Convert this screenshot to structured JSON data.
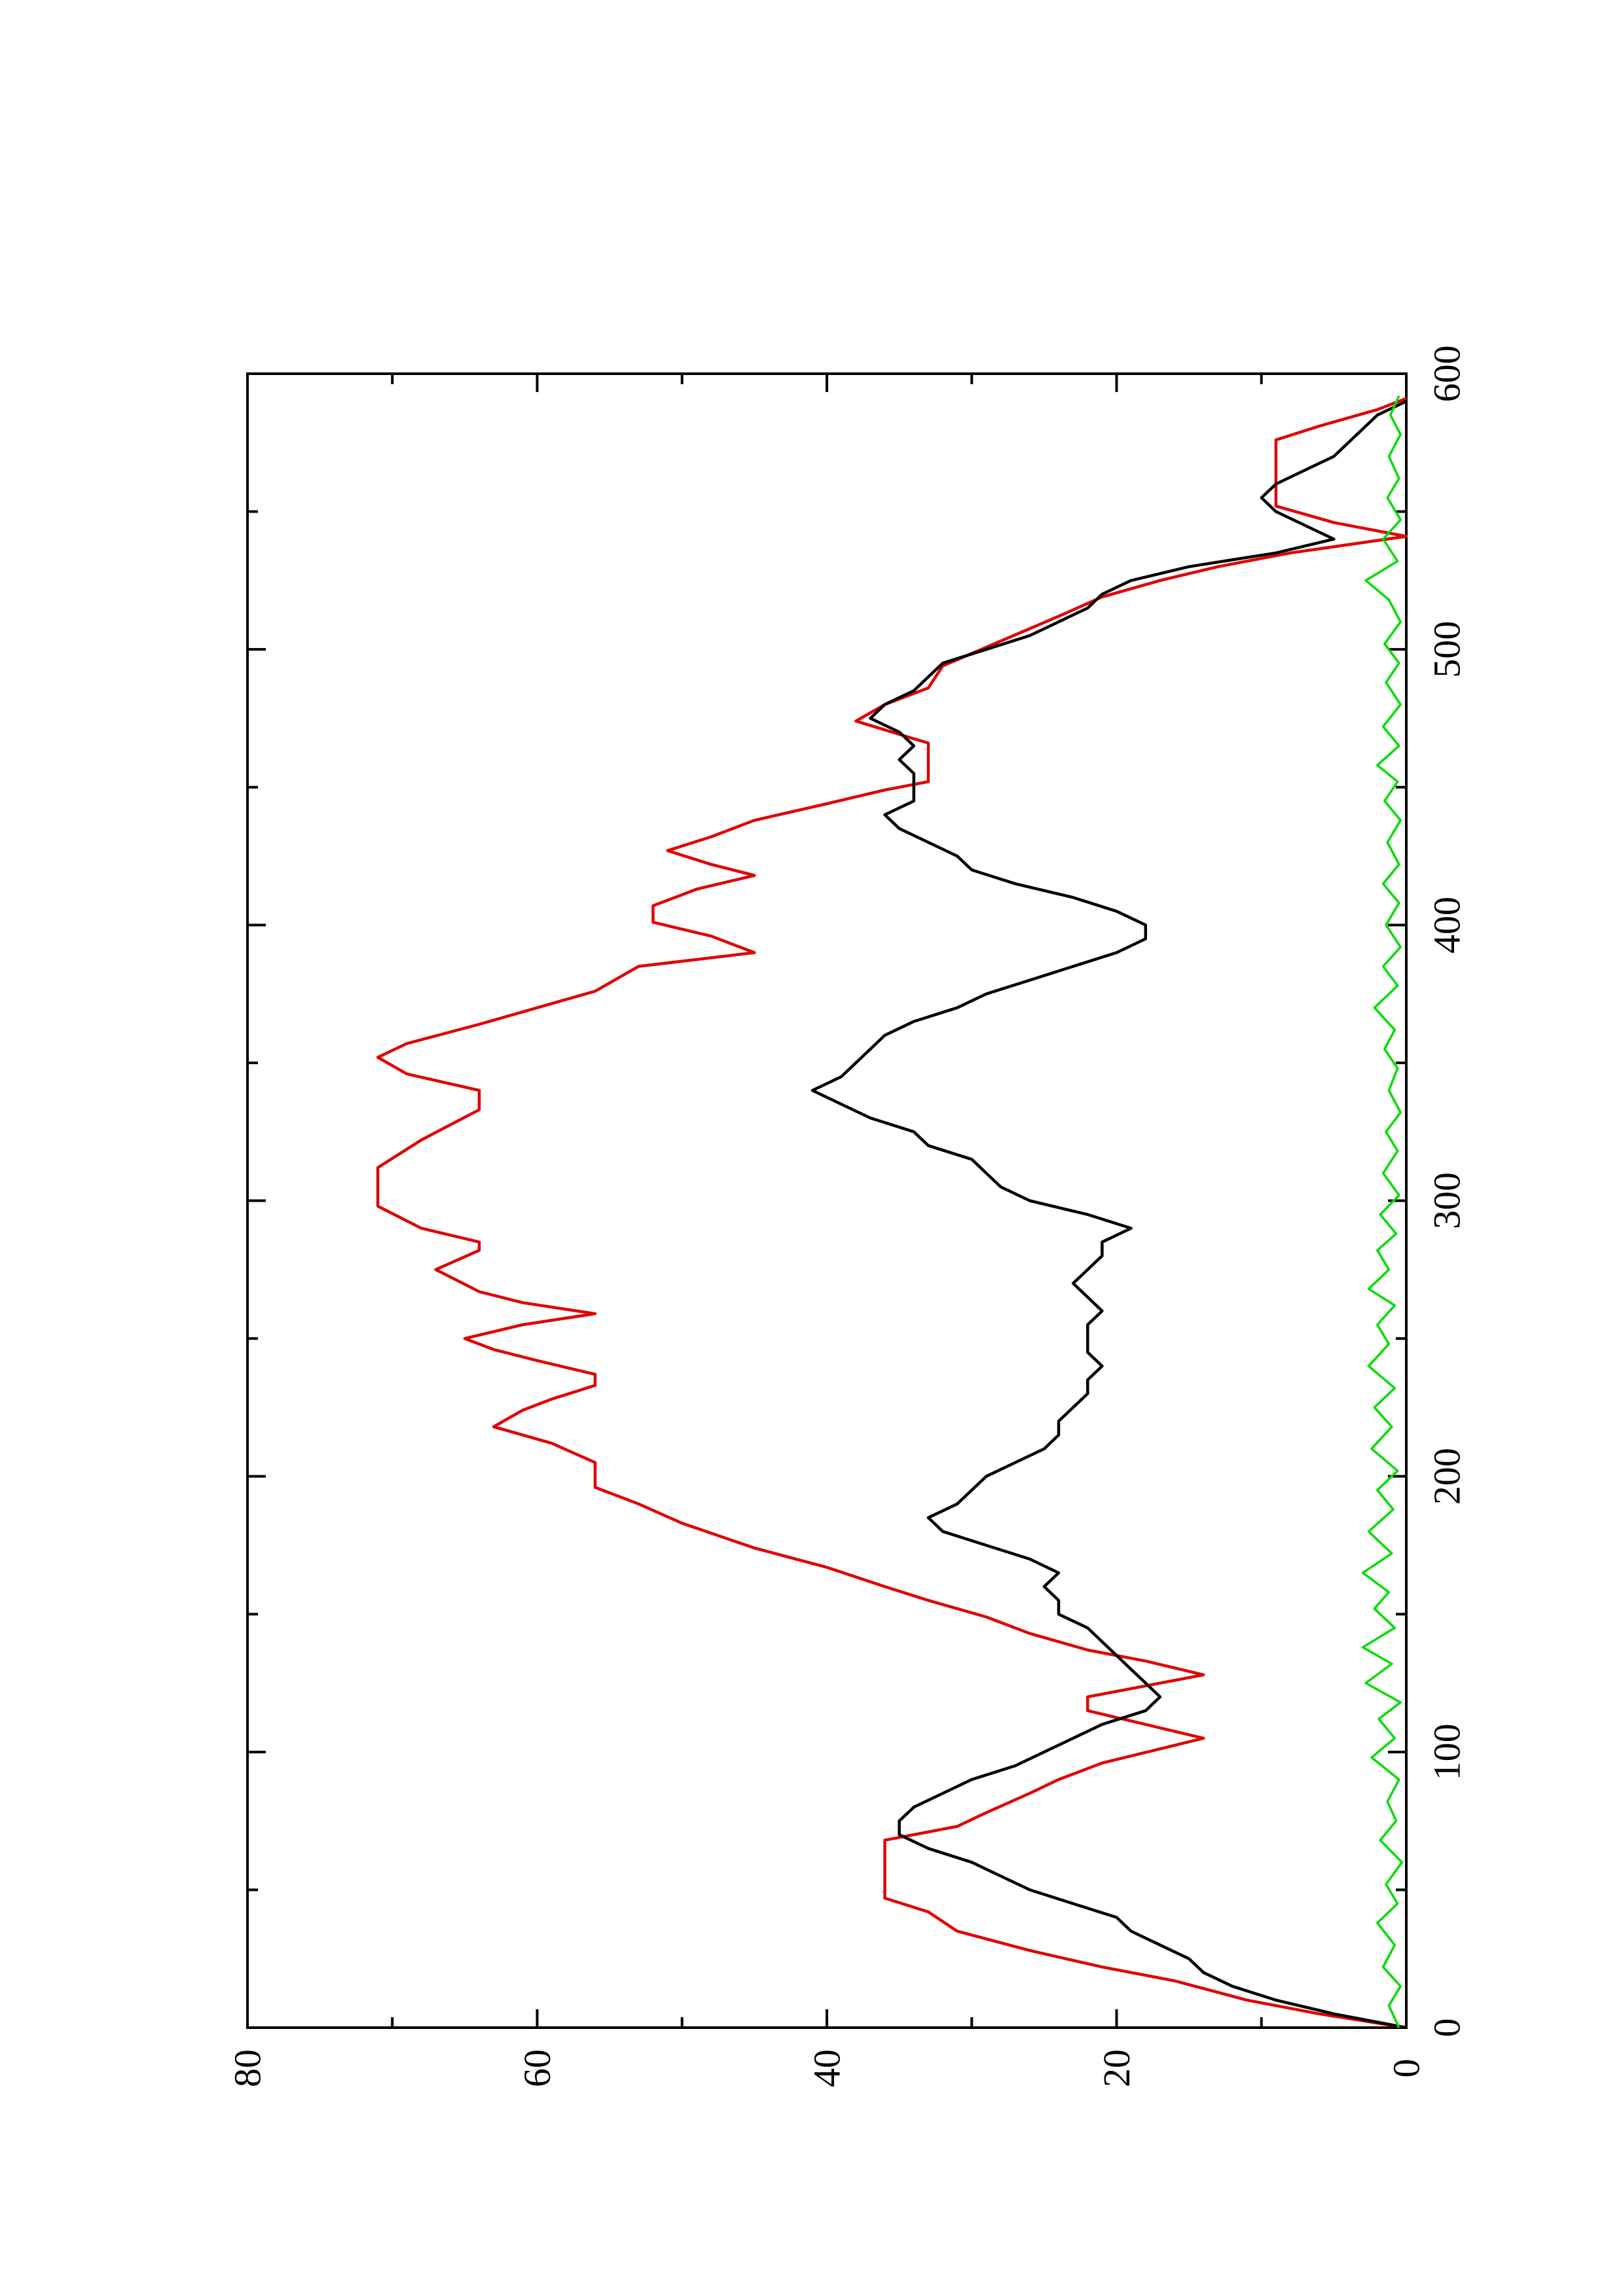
{
  "chart_data": {
    "type": "line",
    "title": "",
    "xlabel": "",
    "ylabel": "",
    "orientation": "rotated-90-ccw",
    "xlim": [
      0,
      600
    ],
    "ylim": [
      0,
      80
    ],
    "x_ticks": [
      0,
      100,
      200,
      300,
      400,
      500,
      600
    ],
    "x_tick_labels": [
      "0",
      "100",
      "200",
      "300",
      "400",
      "500",
      "600"
    ],
    "y_ticks": [
      0,
      20,
      40,
      60,
      80
    ],
    "y_tick_labels": [
      "0",
      "20",
      "40",
      "60",
      "80"
    ],
    "grid": false,
    "legend": "none",
    "series": [
      {
        "color": "#e00000",
        "style": "step",
        "points": [
          [
            0,
            0
          ],
          [
            5,
            6
          ],
          [
            10,
            11
          ],
          [
            17,
            16
          ],
          [
            22,
            21
          ],
          [
            28,
            26
          ],
          [
            35,
            31
          ],
          [
            42,
            33
          ],
          [
            47,
            36
          ],
          [
            68,
            36
          ],
          [
            73,
            31
          ],
          [
            78,
            29
          ],
          [
            85,
            26
          ],
          [
            90,
            24
          ],
          [
            96,
            21
          ],
          [
            105,
            14
          ],
          [
            110,
            18
          ],
          [
            115,
            22
          ],
          [
            120,
            22
          ],
          [
            124,
            18
          ],
          [
            128,
            14
          ],
          [
            133,
            18
          ],
          [
            137,
            22
          ],
          [
            143,
            26
          ],
          [
            149,
            29
          ],
          [
            155,
            33
          ],
          [
            160,
            36
          ],
          [
            167,
            40
          ],
          [
            174,
            45
          ],
          [
            183,
            50
          ],
          [
            190,
            53
          ],
          [
            196,
            56
          ],
          [
            205,
            56
          ],
          [
            212,
            59
          ],
          [
            218,
            63
          ],
          [
            224,
            61
          ],
          [
            228,
            59
          ],
          [
            233,
            56
          ],
          [
            237,
            56
          ],
          [
            242,
            60
          ],
          [
            246,
            63
          ],
          [
            250,
            65
          ],
          [
            255,
            61
          ],
          [
            259,
            56
          ],
          [
            263,
            61
          ],
          [
            267,
            64
          ],
          [
            275,
            67
          ],
          [
            282,
            64
          ],
          [
            285,
            64
          ],
          [
            290,
            68
          ],
          [
            298,
            71
          ],
          [
            312,
            71
          ],
          [
            322,
            68
          ],
          [
            333,
            64
          ],
          [
            340,
            64
          ],
          [
            346,
            69
          ],
          [
            352,
            71
          ],
          [
            357,
            69
          ],
          [
            364,
            64
          ],
          [
            370,
            60
          ],
          [
            376,
            56
          ],
          [
            385,
            53
          ],
          [
            390,
            45
          ],
          [
            396,
            48
          ],
          [
            401,
            52
          ],
          [
            407,
            52
          ],
          [
            413,
            49
          ],
          [
            418,
            45
          ],
          [
            422,
            48
          ],
          [
            427,
            51
          ],
          [
            432,
            48
          ],
          [
            438,
            45
          ],
          [
            444,
            40
          ],
          [
            449,
            36
          ],
          [
            452,
            33
          ],
          [
            460,
            33
          ],
          [
            466,
            33
          ],
          [
            474,
            38
          ],
          [
            480,
            36
          ],
          [
            486,
            33
          ],
          [
            494,
            32
          ],
          [
            503,
            28
          ],
          [
            512,
            24
          ],
          [
            519,
            21
          ],
          [
            525,
            17
          ],
          [
            530,
            13
          ],
          [
            535,
            8
          ],
          [
            541,
            0
          ],
          [
            546,
            5
          ],
          [
            552,
            9
          ],
          [
            567,
            9
          ],
          [
            576,
            9
          ],
          [
            581,
            6
          ],
          [
            587,
            2
          ],
          [
            591,
            0
          ]
        ]
      },
      {
        "color": "#000000",
        "style": "smooth",
        "points": [
          [
            0,
            0
          ],
          [
            5,
            5
          ],
          [
            10,
            9
          ],
          [
            15,
            12
          ],
          [
            20,
            14
          ],
          [
            25,
            15
          ],
          [
            30,
            17
          ],
          [
            35,
            19
          ],
          [
            40,
            20
          ],
          [
            45,
            23
          ],
          [
            50,
            26
          ],
          [
            55,
            28
          ],
          [
            60,
            30
          ],
          [
            65,
            33
          ],
          [
            70,
            35
          ],
          [
            75,
            35
          ],
          [
            80,
            34
          ],
          [
            85,
            32
          ],
          [
            90,
            30
          ],
          [
            95,
            27
          ],
          [
            100,
            25
          ],
          [
            105,
            23
          ],
          [
            110,
            21
          ],
          [
            115,
            18
          ],
          [
            120,
            17
          ],
          [
            125,
            18
          ],
          [
            130,
            19
          ],
          [
            135,
            20
          ],
          [
            140,
            21
          ],
          [
            145,
            22
          ],
          [
            150,
            24
          ],
          [
            155,
            24
          ],
          [
            160,
            25
          ],
          [
            165,
            24
          ],
          [
            170,
            26
          ],
          [
            175,
            29
          ],
          [
            180,
            32
          ],
          [
            185,
            33
          ],
          [
            190,
            31
          ],
          [
            195,
            30
          ],
          [
            200,
            29
          ],
          [
            205,
            27
          ],
          [
            210,
            25
          ],
          [
            215,
            24
          ],
          [
            220,
            24
          ],
          [
            225,
            23
          ],
          [
            230,
            22
          ],
          [
            235,
            22
          ],
          [
            240,
            21
          ],
          [
            245,
            22
          ],
          [
            250,
            22
          ],
          [
            255,
            22
          ],
          [
            260,
            21
          ],
          [
            265,
            22
          ],
          [
            270,
            23
          ],
          [
            275,
            22
          ],
          [
            280,
            21
          ],
          [
            285,
            21
          ],
          [
            290,
            19
          ],
          [
            295,
            22
          ],
          [
            300,
            26
          ],
          [
            305,
            28
          ],
          [
            310,
            29
          ],
          [
            315,
            30
          ],
          [
            320,
            33
          ],
          [
            325,
            34
          ],
          [
            330,
            37
          ],
          [
            335,
            39
          ],
          [
            340,
            41
          ],
          [
            345,
            39
          ],
          [
            350,
            38
          ],
          [
            355,
            37
          ],
          [
            360,
            36
          ],
          [
            365,
            34
          ],
          [
            370,
            31
          ],
          [
            375,
            29
          ],
          [
            380,
            26
          ],
          [
            385,
            23
          ],
          [
            390,
            20
          ],
          [
            395,
            18
          ],
          [
            400,
            18
          ],
          [
            405,
            20
          ],
          [
            410,
            23
          ],
          [
            415,
            27
          ],
          [
            420,
            30
          ],
          [
            425,
            31
          ],
          [
            430,
            33
          ],
          [
            435,
            35
          ],
          [
            440,
            36
          ],
          [
            445,
            34
          ],
          [
            450,
            34
          ],
          [
            455,
            34
          ],
          [
            460,
            35
          ],
          [
            465,
            34
          ],
          [
            470,
            35
          ],
          [
            475,
            37
          ],
          [
            480,
            36
          ],
          [
            485,
            34
          ],
          [
            490,
            33
          ],
          [
            495,
            32
          ],
          [
            500,
            29
          ],
          [
            505,
            26
          ],
          [
            510,
            24
          ],
          [
            515,
            22
          ],
          [
            520,
            21
          ],
          [
            525,
            19
          ],
          [
            530,
            15
          ],
          [
            535,
            9
          ],
          [
            540,
            5
          ],
          [
            545,
            7
          ],
          [
            550,
            9
          ],
          [
            555,
            10
          ],
          [
            560,
            9
          ],
          [
            565,
            7
          ],
          [
            570,
            5
          ],
          [
            575,
            4
          ],
          [
            580,
            3
          ],
          [
            585,
            2
          ],
          [
            590,
            0
          ]
        ]
      },
      {
        "color": "#00dd00",
        "style": "noise",
        "points": [
          [
            0,
            0.5
          ],
          [
            8,
            1.2
          ],
          [
            15,
            0.4
          ],
          [
            22,
            1.6
          ],
          [
            30,
            0.8
          ],
          [
            38,
            2.0
          ],
          [
            45,
            0.6
          ],
          [
            52,
            1.4
          ],
          [
            60,
            0.3
          ],
          [
            68,
            1.8
          ],
          [
            75,
            0.7
          ],
          [
            82,
            1.3
          ],
          [
            90,
            0.5
          ],
          [
            98,
            2.4
          ],
          [
            105,
            0.8
          ],
          [
            112,
            1.9
          ],
          [
            118,
            0.4
          ],
          [
            125,
            2.8
          ],
          [
            132,
            1.0
          ],
          [
            138,
            3.0
          ],
          [
            145,
            0.8
          ],
          [
            152,
            2.2
          ],
          [
            158,
            1.2
          ],
          [
            165,
            3.0
          ],
          [
            172,
            1.0
          ],
          [
            180,
            2.6
          ],
          [
            188,
            0.9
          ],
          [
            195,
            2.0
          ],
          [
            202,
            0.6
          ],
          [
            210,
            2.4
          ],
          [
            218,
            1.0
          ],
          [
            225,
            2.2
          ],
          [
            232,
            0.8
          ],
          [
            240,
            2.6
          ],
          [
            248,
            1.2
          ],
          [
            255,
            2.0
          ],
          [
            262,
            0.8
          ],
          [
            268,
            2.6
          ],
          [
            275,
            1.2
          ],
          [
            282,
            2.0
          ],
          [
            288,
            0.7
          ],
          [
            295,
            1.8
          ],
          [
            302,
            0.5
          ],
          [
            310,
            1.6
          ],
          [
            318,
            0.6
          ],
          [
            325,
            1.4
          ],
          [
            332,
            0.4
          ],
          [
            340,
            1.2
          ],
          [
            348,
            0.6
          ],
          [
            355,
            1.5
          ],
          [
            362,
            0.8
          ],
          [
            370,
            2.2
          ],
          [
            378,
            0.6
          ],
          [
            385,
            1.6
          ],
          [
            392,
            0.4
          ],
          [
            400,
            1.4
          ],
          [
            408,
            0.5
          ],
          [
            415,
            1.6
          ],
          [
            422,
            0.5
          ],
          [
            430,
            1.3
          ],
          [
            438,
            0.4
          ],
          [
            445,
            1.5
          ],
          [
            452,
            0.6
          ],
          [
            458,
            2.0
          ],
          [
            465,
            0.5
          ],
          [
            472,
            1.6
          ],
          [
            480,
            0.4
          ],
          [
            488,
            1.4
          ],
          [
            495,
            0.5
          ],
          [
            502,
            1.5
          ],
          [
            510,
            0.4
          ],
          [
            518,
            1.2
          ],
          [
            525,
            2.8
          ],
          [
            532,
            0.6
          ],
          [
            540,
            1.6
          ],
          [
            547,
            0.4
          ],
          [
            555,
            1.3
          ],
          [
            562,
            0.5
          ],
          [
            570,
            1.2
          ],
          [
            578,
            0.4
          ],
          [
            585,
            1.1
          ],
          [
            592,
            0.5
          ]
        ]
      }
    ]
  }
}
